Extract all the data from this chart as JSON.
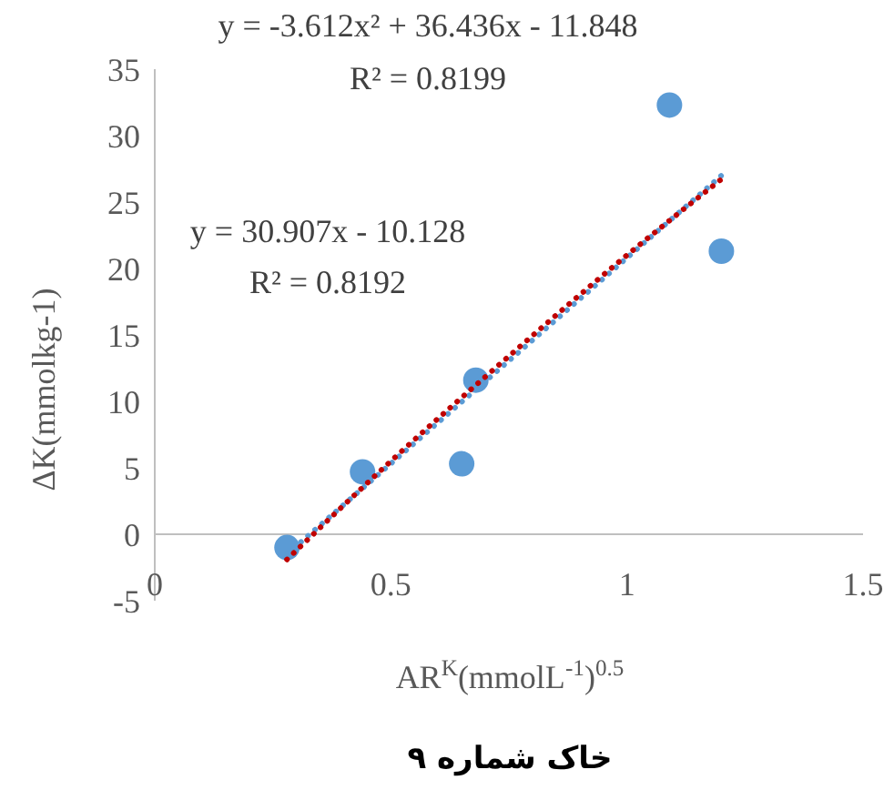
{
  "chart_data": {
    "type": "scatter",
    "title": "خاک شماره ۹",
    "xlabel": "AR$^{K}$(mmolL$^{-1}$)$^{0.5}$",
    "ylabel": "ΔK(mmolkg-1)",
    "xlim": [
      0,
      1.5
    ],
    "xticks": [
      0,
      0.5,
      1,
      1.5
    ],
    "ylim": [
      -5,
      35
    ],
    "yticks": [
      -5,
      0,
      5,
      10,
      15,
      20,
      25,
      30,
      35
    ],
    "grid": false,
    "annotations": [
      "y = -3.612x² + 36.436x - 11.848",
      "R² = 0.8199",
      "y = 30.907x - 10.128",
      "R² = 0.8192"
    ],
    "series": [
      {
        "color": "#5b9bd5",
        "marker": "circle",
        "x": [
          0.28,
          0.44,
          0.65,
          0.68,
          1.09,
          1.2
        ],
        "values": [
          -1,
          4.7,
          5.3,
          11.6,
          32.3,
          21.3
        ]
      },
      {
        "type": "line",
        "color": "#5b9bd5",
        "line_style": "dotted",
        "x": [
          0.28,
          1.21
        ],
        "values": [
          -1.5,
          27.3
        ]
      },
      {
        "type": "line",
        "color": "#c00000",
        "line_style": "dotted",
        "x": [
          0.28,
          0.5,
          0.75,
          1,
          1.21
        ],
        "values": [
          -1.9,
          5.5,
          13.4,
          21,
          27
        ]
      }
    ]
  }
}
